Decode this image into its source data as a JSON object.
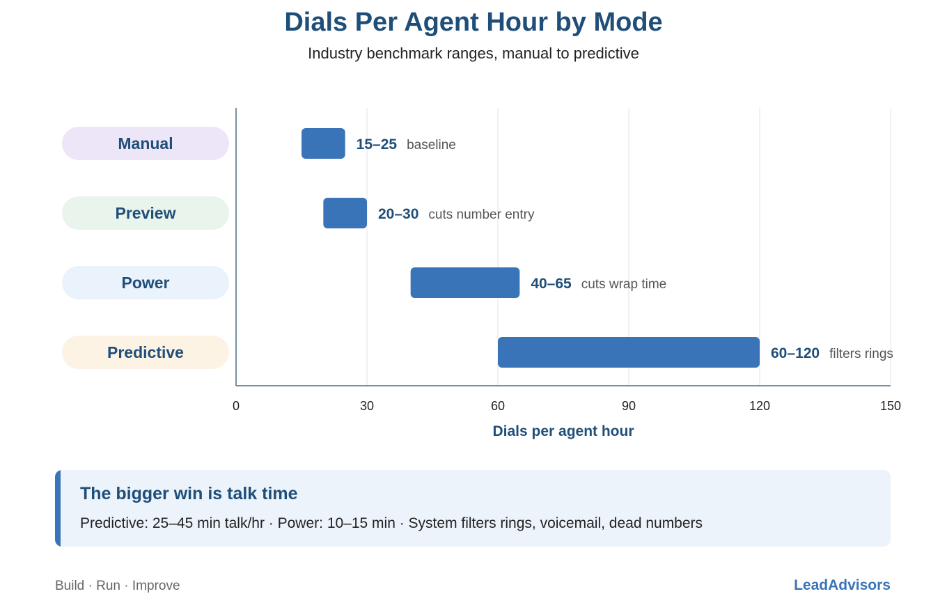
{
  "page": {
    "title": "Dials Per Agent Hour by Mode",
    "subtitle": "Industry benchmark ranges, manual to predictive"
  },
  "chart_data": {
    "type": "bar",
    "orientation": "horizontal-range",
    "title": "Dials Per Agent Hour by Mode",
    "subtitle": "Industry benchmark ranges, manual to predictive",
    "xlabel": "Dials per agent hour",
    "ylabel": "",
    "xlim": [
      0,
      150
    ],
    "xticks": [
      0,
      30,
      60,
      90,
      120,
      150
    ],
    "grid": true,
    "categories": [
      "Manual",
      "Preview",
      "Power",
      "Predictive"
    ],
    "ranges": [
      {
        "category": "Manual",
        "low": 15,
        "high": 25,
        "value_label": "15–25",
        "note": "baseline",
        "pill_color": "#ede5f8"
      },
      {
        "category": "Preview",
        "low": 20,
        "high": 30,
        "value_label": "20–30",
        "note": "cuts number entry",
        "pill_color": "#e8f4ec"
      },
      {
        "category": "Power",
        "low": 40,
        "high": 65,
        "value_label": "40–65",
        "note": "cuts wrap time",
        "pill_color": "#eaf2fb"
      },
      {
        "category": "Predictive",
        "low": 60,
        "high": 120,
        "value_label": "60–120",
        "note": "filters rings",
        "pill_color": "#fdf3e4"
      }
    ],
    "bar_color": "#3a74b8"
  },
  "callout": {
    "title": "The bigger win is talk time",
    "body": "Predictive: 25–45 min talk/hr · Power: 10–15 min · System filters rings, voicemail, dead numbers"
  },
  "footer": {
    "left": "Build · Run · Improve",
    "brand": "LeadAdvisors"
  },
  "colors": {
    "accent": "#3a74b8",
    "heading": "#1f4e79",
    "callout_bg": "#edf3fb"
  }
}
